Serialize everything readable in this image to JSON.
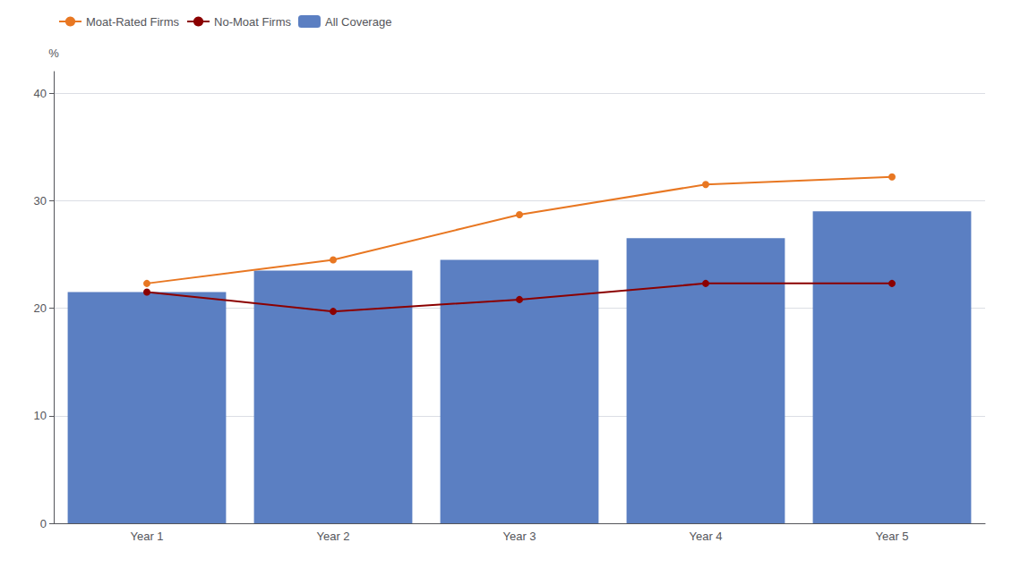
{
  "chart_data": {
    "type": "bar",
    "categories": [
      "Year 1",
      "Year 2",
      "Year 3",
      "Year 4",
      "Year 5"
    ],
    "ylabel": "%",
    "series": [
      {
        "name": "Moat-Rated Firms",
        "type": "line",
        "marker": "circle",
        "color": "#E87722",
        "values": [
          22.3,
          24.5,
          28.7,
          31.5,
          32.2
        ]
      },
      {
        "name": "No-Moat Firms",
        "type": "line",
        "marker": "circle",
        "color": "#8B0000",
        "values": [
          21.5,
          19.7,
          20.8,
          22.3,
          22.3
        ]
      },
      {
        "name": "All Coverage",
        "type": "bar",
        "color": "#5B7FC2",
        "values": [
          21.5,
          23.5,
          24.5,
          26.5,
          29.0
        ]
      }
    ],
    "ylim": [
      0,
      42
    ],
    "yticks": [
      0,
      10,
      20,
      30,
      40
    ],
    "grid": true,
    "legend": "top left"
  }
}
